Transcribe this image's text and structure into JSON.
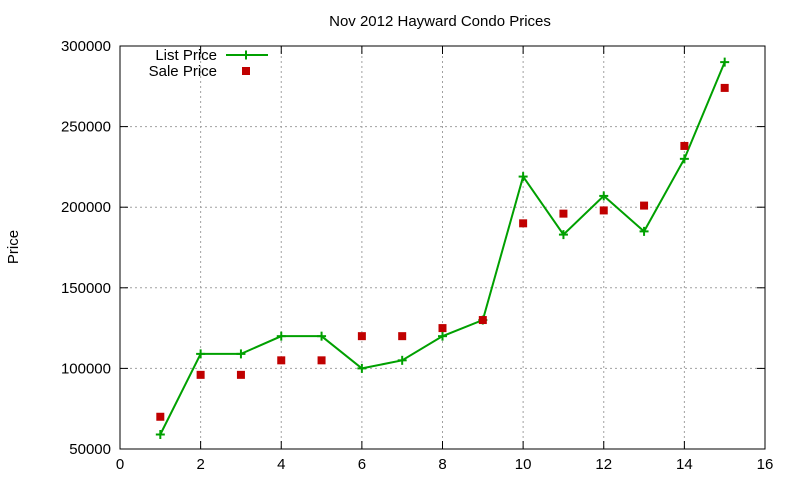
{
  "colors": {
    "list_price": "#00a000",
    "sale_price": "#c00000",
    "grid": "#a0a0a0",
    "axis": "#000000"
  },
  "chart_data": {
    "type": "line",
    "title": "Nov 2012 Hayward Condo Prices",
    "xlabel": "",
    "ylabel": "Price",
    "xlim": [
      0,
      16
    ],
    "ylim": [
      50000,
      300000
    ],
    "x_ticks": [
      0,
      2,
      4,
      6,
      8,
      10,
      12,
      14,
      16
    ],
    "y_ticks": [
      50000,
      100000,
      150000,
      200000,
      250000,
      300000
    ],
    "grid": true,
    "legend_position": "top-left",
    "series": [
      {
        "name": "List Price",
        "style": "line-with-plus-markers",
        "color": "#00a000",
        "x": [
          1,
          2,
          3,
          4,
          5,
          6,
          7,
          8,
          9,
          10,
          11,
          12,
          13,
          14,
          15
        ],
        "y": [
          59000,
          109000,
          109000,
          120000,
          120000,
          100000,
          105000,
          120000,
          130000,
          219000,
          183000,
          207000,
          185000,
          230000,
          290000
        ]
      },
      {
        "name": "Sale Price",
        "style": "square-points",
        "color": "#c00000",
        "x": [
          1,
          2,
          3,
          4,
          5,
          6,
          7,
          8,
          9,
          10,
          11,
          12,
          13,
          14,
          15
        ],
        "y": [
          70000,
          96000,
          96000,
          105000,
          105000,
          120000,
          120000,
          125000,
          130000,
          190000,
          196000,
          198000,
          201000,
          238000,
          274000
        ]
      }
    ]
  }
}
